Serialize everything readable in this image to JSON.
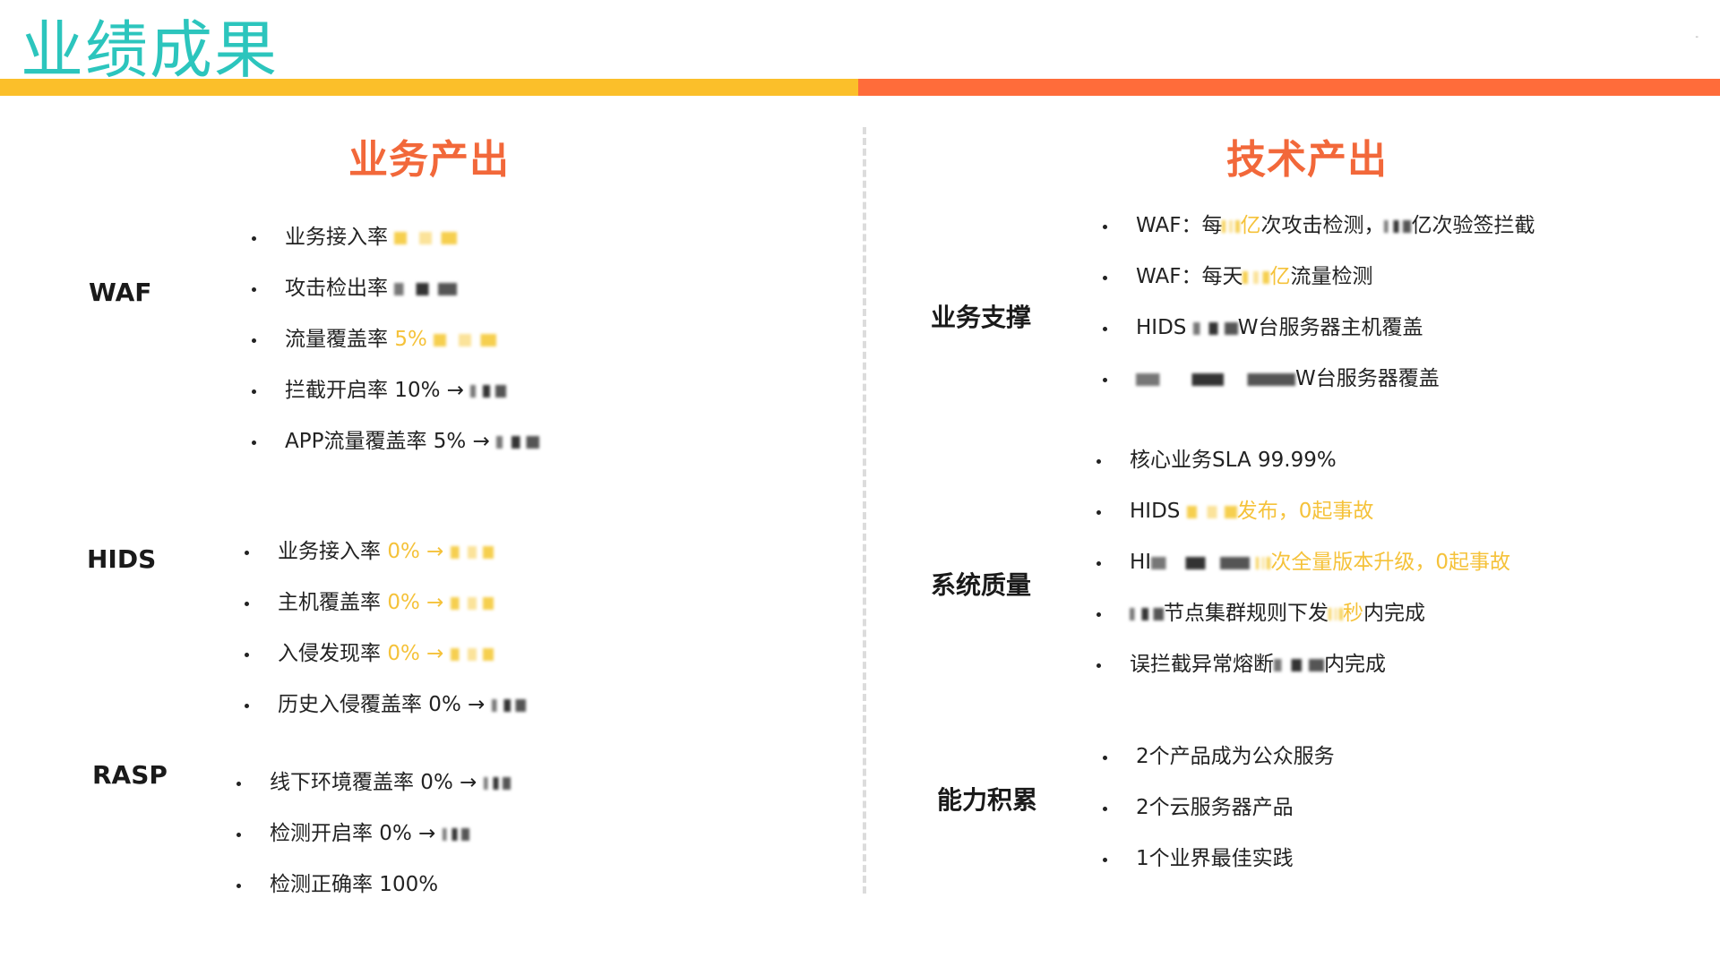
{
  "header": {
    "title": "业绩成果",
    "corner_mark": "-",
    "colors": {
      "title": "#2cc5bd",
      "band_left": "#fbbf2a",
      "band_right": "#ff6c3a",
      "section_title": "#f2683a",
      "highlight": "#f5c23a"
    }
  },
  "business": {
    "title": "业务产出",
    "waf": {
      "label": "WAF",
      "items": [
        {
          "text": "业务接入率",
          "hl": ""
        },
        {
          "text": "攻击检出率",
          "hl": ""
        },
        {
          "text": "流量覆盖率",
          "hl": "5%"
        },
        {
          "text": "拦截开启率 10% →",
          "hl": ""
        },
        {
          "text": "APP流量覆盖率  5% →",
          "hl": ""
        }
      ]
    },
    "hids": {
      "label": "HIDS",
      "items": [
        {
          "text": "业务接入率",
          "hl": "0% →"
        },
        {
          "text": "主机覆盖率",
          "hl": "0% →"
        },
        {
          "text": "入侵发现率",
          "hl": "0% →"
        },
        {
          "text": "历史入侵覆盖率 0% →",
          "hl": ""
        }
      ]
    },
    "rasp": {
      "label": "RASP",
      "items": [
        {
          "text": "线下环境覆盖率 0% →",
          "hl": ""
        },
        {
          "text": "检测开启率 0% →",
          "hl": ""
        },
        {
          "text": "检测正确率  100%",
          "hl": ""
        }
      ]
    }
  },
  "tech": {
    "title": "技术产出",
    "support": {
      "label": "业务支撑",
      "items": [
        {
          "a": "WAF：每",
          "hl": "亿",
          "b": "次攻击检测，",
          "c": "亿次验签拦截"
        },
        {
          "a": "WAF：每天",
          "hl": "亿",
          "b": "流量检测",
          "c": ""
        },
        {
          "a": "HIDS",
          "hl": "",
          "b": "W台服务器主机覆盖",
          "c": ""
        },
        {
          "a": "",
          "hl": "",
          "b": "W台服务器覆盖",
          "c": ""
        }
      ]
    },
    "quality": {
      "label": "系统质量",
      "items": [
        {
          "a": "核心业务SLA 99.99%",
          "hl": "",
          "b": "",
          "c": ""
        },
        {
          "a": "HIDS",
          "hl": "发布，0起事故",
          "b": "",
          "c": ""
        },
        {
          "a": "HI",
          "hl": "次全量版本升级，0起事故",
          "b": "",
          "c": ""
        },
        {
          "a": "",
          "hl": "秒",
          "b": "节点集群规则下发",
          "c": "内完成"
        },
        {
          "a": "误拦截异常熔断",
          "hl": "",
          "b": "",
          "c": "内完成"
        }
      ]
    },
    "capability": {
      "label": "能力积累",
      "items": [
        {
          "a": "2个产品成为公众服务"
        },
        {
          "a": "2个云服务器产品"
        },
        {
          "a": "1个业界最佳实践"
        }
      ]
    }
  }
}
